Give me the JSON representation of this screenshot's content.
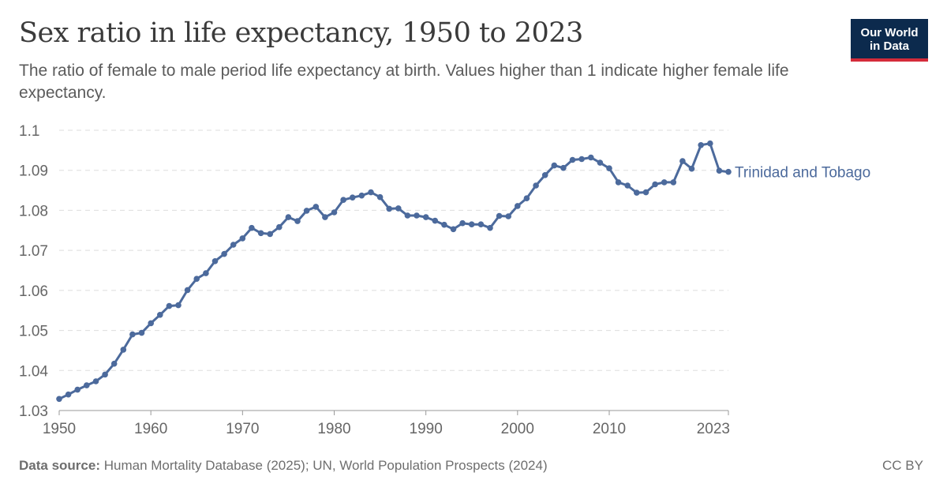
{
  "header": {
    "title": "Sex ratio in life expectancy, 1950 to 2023",
    "subtitle": "The ratio of female to male period life expectancy at birth. Values higher than 1 indicate higher female life expectancy."
  },
  "logo": {
    "line1": "Our World",
    "line2": "in Data",
    "bg_color": "#0c2a4d",
    "accent_color": "#d42b3a"
  },
  "footer": {
    "source_label": "Data source:",
    "source_text": "Human Mortality Database (2025); UN, World Population Prospects (2024)",
    "license": "CC BY"
  },
  "chart_data": {
    "type": "line",
    "title": "Sex ratio in life expectancy, 1950 to 2023",
    "xlabel": "",
    "ylabel": "",
    "xlim": [
      1950,
      2023
    ],
    "ylim": [
      1.03,
      1.1
    ],
    "x_ticks": [
      "1950",
      "1960",
      "1970",
      "1980",
      "1990",
      "2000",
      "2010",
      "2023"
    ],
    "y_ticks": [
      "1.03",
      "1.04",
      "1.05",
      "1.06",
      "1.07",
      "1.08",
      "1.09",
      "1.1"
    ],
    "grid": "horizontal dashed",
    "series": [
      {
        "name": "Trinidad and Tobago",
        "color": "#4c6a9c",
        "x": [
          1950,
          1951,
          1952,
          1953,
          1954,
          1955,
          1956,
          1957,
          1958,
          1959,
          1960,
          1961,
          1962,
          1963,
          1964,
          1965,
          1966,
          1967,
          1968,
          1969,
          1970,
          1971,
          1972,
          1973,
          1974,
          1975,
          1976,
          1977,
          1978,
          1979,
          1980,
          1981,
          1982,
          1983,
          1984,
          1985,
          1986,
          1987,
          1988,
          1989,
          1990,
          1991,
          1992,
          1993,
          1994,
          1995,
          1996,
          1997,
          1998,
          1999,
          2000,
          2001,
          2002,
          2003,
          2004,
          2005,
          2006,
          2007,
          2008,
          2009,
          2010,
          2011,
          2012,
          2013,
          2014,
          2015,
          2016,
          2017,
          2018,
          2019,
          2020,
          2021,
          2022,
          2023
        ],
        "values": [
          1.0329,
          1.034,
          1.0352,
          1.0363,
          1.0373,
          1.039,
          1.0417,
          1.0452,
          1.049,
          1.0494,
          1.0518,
          1.0539,
          1.0561,
          1.0563,
          1.0601,
          1.0629,
          1.0643,
          1.0673,
          1.0691,
          1.0714,
          1.073,
          1.0756,
          1.0743,
          1.0741,
          1.0758,
          1.0783,
          1.0773,
          1.0799,
          1.0809,
          1.0783,
          1.0795,
          1.0826,
          1.0832,
          1.0837,
          1.0845,
          1.0833,
          1.0804,
          1.0805,
          1.0787,
          1.0787,
          1.0783,
          1.0774,
          1.0764,
          1.0753,
          1.0768,
          1.0765,
          1.0765,
          1.0756,
          1.0786,
          1.0785,
          1.0811,
          1.083,
          1.0862,
          1.0888,
          1.0912,
          1.0906,
          1.0926,
          1.0928,
          1.0932,
          1.0919,
          1.0905,
          1.087,
          1.0862,
          1.0844,
          1.0845,
          1.0865,
          1.087,
          1.087,
          1.0923,
          1.0904,
          1.0963,
          1.0967,
          1.0899,
          1.0896
        ]
      }
    ]
  }
}
